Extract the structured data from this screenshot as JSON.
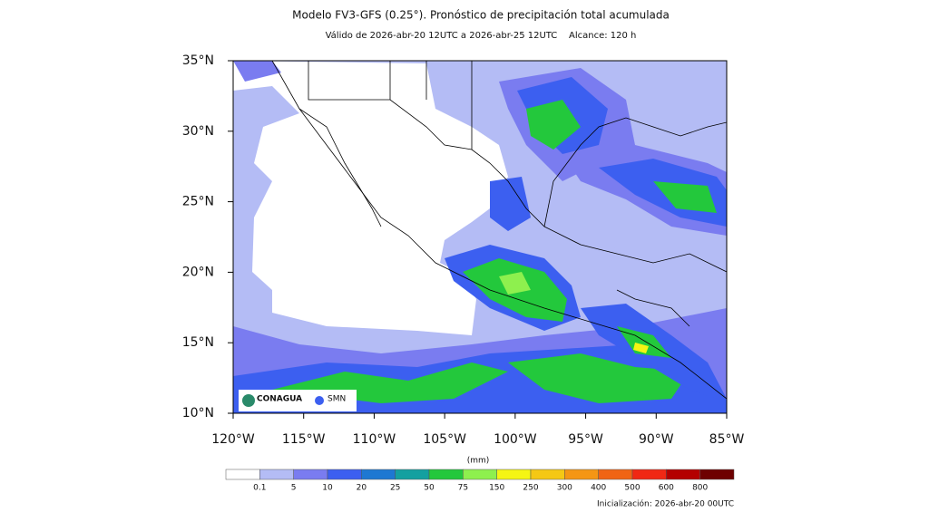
{
  "title": "Modelo FV3-GFS (0.25°). Pronóstico de precipitación total acumulada",
  "subtitle": "Válido de 2026-abr-20 12UTC a 2026-abr-25 12UTC    Alcance: 120 h",
  "map": {
    "lat_labels": [
      "35°N",
      "30°N",
      "25°N",
      "20°N",
      "15°N",
      "10°N"
    ],
    "lon_labels": [
      "120°W",
      "115°W",
      "110°W",
      "105°W",
      "100°W",
      "95°W",
      "90°W",
      "85°W"
    ]
  },
  "logos": [
    "CONAGUA",
    "SMN"
  ],
  "legend": {
    "unit": "(mm)",
    "labels": [
      "0.1",
      "5",
      "10",
      "20",
      "25",
      "50",
      "75",
      "150",
      "250",
      "300",
      "400",
      "500",
      "600",
      "800"
    ],
    "colors": [
      "#ffffff",
      "#b4bcf5",
      "#7a7cf0",
      "#3c5ff0",
      "#1e78d2",
      "#14a0a0",
      "#23c83c",
      "#8ef04e",
      "#f5f514",
      "#f5c814",
      "#f59614",
      "#f06414",
      "#f02814",
      "#b40000",
      "#6e0000"
    ]
  },
  "footer": "Inicialización: 2026-abr-20 00UTC"
}
